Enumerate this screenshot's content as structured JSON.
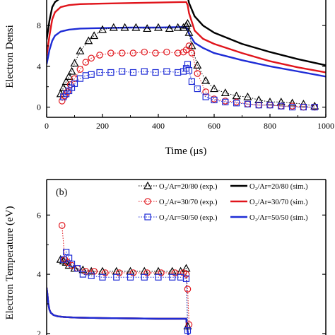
{
  "chart_data": [
    {
      "type": "line",
      "panel": "a",
      "xlabel": "Time (μs)",
      "ylabel": "Electron Densi",
      "xlim": [
        0,
        1000
      ],
      "ylim": [
        -1,
        10.5
      ],
      "xticks": [
        "0",
        "200",
        "400",
        "600",
        "800",
        "1000"
      ],
      "yticks": [
        "0",
        "4",
        "8"
      ],
      "grid": false,
      "series": [
        {
          "kind": "exp",
          "marker": "triangle",
          "color": "#000000",
          "x": [
            50,
            60,
            70,
            80,
            90,
            100,
            120,
            150,
            170,
            200,
            240,
            280,
            320,
            360,
            400,
            440,
            470,
            490,
            500,
            505,
            510,
            520,
            540,
            570,
            600,
            640,
            680,
            720,
            760,
            800,
            840,
            880,
            920,
            960
          ],
          "y": [
            1.3,
            1.9,
            2.5,
            3.0,
            3.5,
            4.3,
            5.5,
            6.5,
            7.0,
            7.6,
            7.8,
            7.8,
            7.8,
            7.7,
            7.8,
            7.7,
            7.8,
            7.8,
            8.0,
            8.2,
            7.3,
            6.0,
            4.1,
            2.6,
            1.8,
            1.4,
            1.1,
            1.0,
            0.7,
            0.5,
            0.5,
            0.4,
            0.3,
            0.1
          ]
        },
        {
          "kind": "exp",
          "marker": "circle",
          "color": "#e0141b",
          "x": [
            55,
            65,
            75,
            85,
            100,
            120,
            140,
            160,
            190,
            230,
            270,
            310,
            350,
            390,
            430,
            470,
            490,
            500,
            510,
            520,
            540,
            570,
            600,
            640,
            680,
            720,
            760,
            800,
            840,
            880,
            920,
            960
          ],
          "y": [
            0.6,
            1.1,
            1.5,
            2.2,
            2.8,
            3.7,
            4.4,
            4.8,
            5.1,
            5.3,
            5.3,
            5.3,
            5.4,
            5.3,
            5.4,
            5.3,
            5.4,
            5.6,
            6.0,
            5.3,
            3.3,
            1.5,
            0.8,
            0.6,
            0.5,
            0.3,
            0.2,
            0.2,
            0.1,
            0.1,
            0.0,
            0.0
          ]
        },
        {
          "kind": "exp",
          "marker": "square",
          "color": "#1e2cd6",
          "x": [
            60,
            70,
            80,
            90,
            100,
            120,
            140,
            160,
            190,
            230,
            270,
            310,
            350,
            390,
            430,
            470,
            490,
            500,
            505,
            510,
            520,
            540,
            570,
            600,
            640,
            680,
            720,
            760,
            800,
            840,
            880,
            920,
            960
          ],
          "y": [
            1.0,
            1.3,
            1.6,
            1.9,
            2.3,
            2.8,
            3.1,
            3.2,
            3.4,
            3.4,
            3.5,
            3.4,
            3.5,
            3.4,
            3.5,
            3.4,
            3.5,
            3.8,
            4.2,
            3.6,
            2.5,
            1.8,
            1.0,
            0.7,
            0.5,
            0.4,
            0.3,
            0.2,
            0.2,
            0.1,
            0.0,
            0.0,
            0.0
          ]
        },
        {
          "kind": "sim",
          "color": "#000000",
          "x": [
            0,
            10,
            20,
            30,
            50,
            80,
            120,
            200,
            300,
            400,
            480,
            500,
            505,
            510,
            530,
            560,
            600,
            700,
            800,
            900,
            1000
          ],
          "y": [
            6.6,
            8.5,
            9.8,
            10.3,
            10.7,
            10.8,
            10.9,
            10.95,
            11.0,
            11.0,
            11.0,
            11.0,
            10.8,
            10.2,
            8.9,
            8.0,
            7.3,
            6.2,
            5.4,
            4.7,
            4.1
          ]
        },
        {
          "kind": "sim",
          "color": "#e0141b",
          "x": [
            0,
            10,
            20,
            30,
            50,
            80,
            120,
            200,
            300,
            400,
            480,
            500,
            505,
            510,
            530,
            560,
            600,
            700,
            800,
            900,
            1000
          ],
          "y": [
            5.0,
            7.0,
            8.6,
            9.3,
            9.8,
            10.0,
            10.1,
            10.15,
            10.2,
            10.25,
            10.3,
            10.3,
            10.0,
            9.2,
            7.5,
            6.7,
            6.2,
            5.3,
            4.5,
            3.9,
            3.4
          ]
        },
        {
          "kind": "sim",
          "color": "#1e2cd6",
          "x": [
            0,
            10,
            20,
            30,
            50,
            80,
            120,
            200,
            300,
            400,
            480,
            500,
            505,
            510,
            530,
            560,
            600,
            700,
            800,
            900,
            1000
          ],
          "y": [
            4.2,
            5.6,
            6.5,
            7.0,
            7.4,
            7.6,
            7.7,
            7.75,
            7.8,
            7.8,
            7.85,
            7.85,
            7.6,
            7.2,
            6.3,
            5.8,
            5.3,
            4.6,
            4.0,
            3.5,
            3.0
          ]
        }
      ]
    },
    {
      "type": "line",
      "panel": "b",
      "panel_label": "(b)",
      "ylabel": "Electron Temperature (eV)",
      "xlim": [
        0,
        1000
      ],
      "ylim": [
        1.95,
        7.2
      ],
      "yticks": [
        "2",
        "4",
        "6"
      ],
      "grid": false,
      "legend_position": "top-right",
      "legend": [
        {
          "exp": "O₂/Ar=20/80 (exp.)",
          "sim": "O₂/Ar=20/80 (sim.)",
          "color": "#000000",
          "marker": "triangle"
        },
        {
          "exp": "O₂/Ar=30/70 (exp.)",
          "sim": "O₂/Ar=30/70 (sim.)",
          "color": "#e0141b",
          "marker": "circle"
        },
        {
          "exp": "O₂/Ar=50/50 (exp.)",
          "sim": "O₂/Ar=50/50 (sim.)",
          "color": "#1e2cd6",
          "marker": "square"
        }
      ],
      "series": [
        {
          "kind": "exp",
          "marker": "triangle",
          "color": "#000000",
          "x": [
            50,
            60,
            70,
            80,
            100,
            130,
            160,
            200,
            250,
            300,
            350,
            400,
            450,
            480,
            500,
            505
          ],
          "y": [
            4.5,
            4.45,
            4.4,
            4.3,
            4.2,
            4.15,
            4.1,
            4.1,
            4.1,
            4.1,
            4.1,
            4.1,
            4.1,
            4.1,
            4.2,
            2.25
          ]
        },
        {
          "kind": "exp",
          "marker": "circle",
          "color": "#e0141b",
          "x": [
            55,
            65,
            75,
            90,
            110,
            140,
            170,
            210,
            260,
            310,
            360,
            410,
            460,
            490,
            500,
            505,
            510
          ],
          "y": [
            5.65,
            4.5,
            4.4,
            4.3,
            4.2,
            4.1,
            4.1,
            4.05,
            4.05,
            4.05,
            4.05,
            4.05,
            4.05,
            4.05,
            4.0,
            3.5,
            2.3
          ]
        },
        {
          "kind": "exp",
          "marker": "square",
          "color": "#1e2cd6",
          "x": [
            60,
            70,
            80,
            90,
            110,
            130,
            160,
            200,
            250,
            300,
            350,
            400,
            450,
            480,
            500,
            505
          ],
          "y": [
            4.5,
            4.75,
            4.55,
            4.35,
            4.2,
            4.0,
            3.95,
            3.9,
            3.9,
            3.9,
            3.9,
            3.9,
            3.9,
            3.9,
            3.85,
            2.1
          ]
        },
        {
          "kind": "sim",
          "color": "#000000",
          "x": [
            0,
            3,
            6,
            10,
            15,
            25,
            40,
            60,
            100,
            200,
            300,
            400,
            500,
            503,
            507,
            515,
            530
          ],
          "y": [
            3.55,
            3.3,
            3.0,
            2.8,
            2.7,
            2.62,
            2.58,
            2.56,
            2.54,
            2.52,
            2.51,
            2.5,
            2.5,
            2.2,
            1.95,
            1.9,
            1.88
          ]
        },
        {
          "kind": "sim",
          "color": "#e0141b",
          "x": [
            0,
            3,
            6,
            10,
            15,
            25,
            40,
            60,
            100,
            200,
            300,
            400,
            500,
            503,
            507,
            515,
            530
          ],
          "y": [
            3.55,
            3.3,
            3.0,
            2.8,
            2.7,
            2.62,
            2.58,
            2.56,
            2.54,
            2.52,
            2.51,
            2.5,
            2.5,
            2.2,
            1.95,
            1.9,
            1.88
          ]
        },
        {
          "kind": "sim",
          "color": "#1e2cd6",
          "x": [
            0,
            3,
            6,
            10,
            15,
            25,
            40,
            60,
            100,
            200,
            300,
            400,
            500,
            503,
            507,
            515,
            530
          ],
          "y": [
            3.55,
            3.3,
            3.0,
            2.8,
            2.7,
            2.62,
            2.58,
            2.56,
            2.54,
            2.52,
            2.51,
            2.5,
            2.5,
            2.2,
            1.95,
            1.9,
            1.88
          ]
        }
      ]
    }
  ]
}
